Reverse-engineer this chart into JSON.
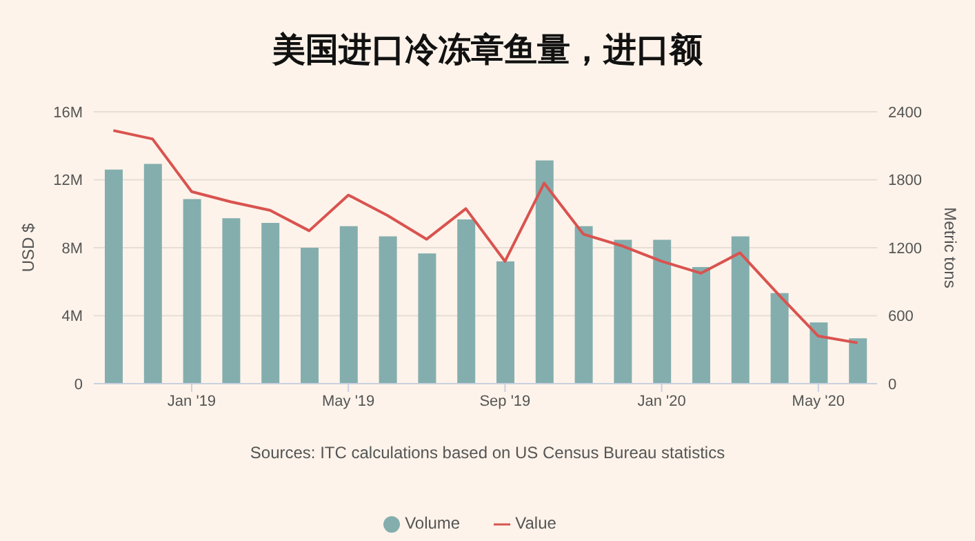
{
  "chart_data": {
    "type": "bar",
    "title": "美国进口冷冻章鱼量，进口额",
    "ylabel": "USD $",
    "y2label": "Metric tons",
    "categories": [
      null,
      null,
      "Jan '19",
      null,
      null,
      null,
      "May '19",
      null,
      null,
      null,
      "Sep '19",
      null,
      null,
      null,
      "Jan '20",
      null,
      null,
      null,
      "May '20",
      null
    ],
    "series": [
      {
        "name": "Volume",
        "axis": "y2",
        "color": "#84aeae",
        "values": [
          1890,
          1940,
          1630,
          1460,
          1420,
          1200,
          1390,
          1300,
          1150,
          1450,
          1080,
          1970,
          1390,
          1270,
          1270,
          1030,
          1300,
          800,
          540,
          400
        ]
      },
      {
        "name": "Value",
        "type": "line",
        "axis": "y",
        "color": "#d9534f",
        "values": [
          14900000,
          14400000,
          11300000,
          10700000,
          10200000,
          9000000,
          11100000,
          9900000,
          8500000,
          10300000,
          7200000,
          11800000,
          8800000,
          8100000,
          7200000,
          6500000,
          7700000,
          5200000,
          2800000,
          2400000
        ]
      }
    ],
    "ylim": [
      0,
      16000000
    ],
    "yticks": [
      {
        "value": 0,
        "label": "0"
      },
      {
        "value": 4000000,
        "label": "4M"
      },
      {
        "value": 8000000,
        "label": "8M"
      },
      {
        "value": 12000000,
        "label": "12M"
      },
      {
        "value": 16000000,
        "label": "16M"
      }
    ],
    "y2lim": [
      0,
      2400
    ],
    "y2ticks": [
      0,
      600,
      1200,
      1800,
      2400
    ],
    "grid": "y",
    "legend": "bottom",
    "marker": "none",
    "annotations": [
      "Sources: ITC calculations based on US Census Bureau statistics"
    ]
  }
}
